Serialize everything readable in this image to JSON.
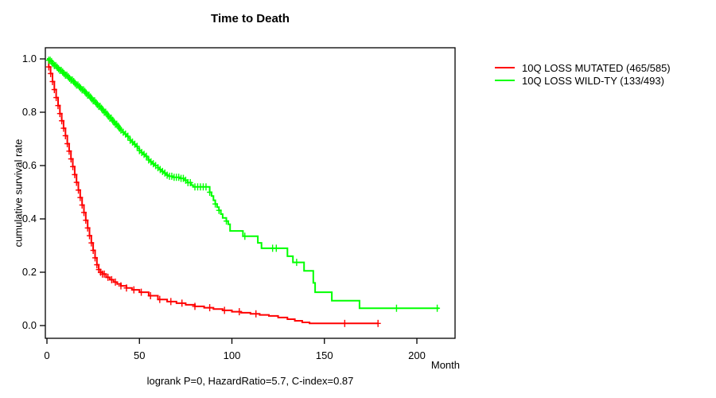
{
  "chart_data": {
    "type": "line",
    "subtype": "kaplan-meier-step-curves",
    "title": "Time to Death",
    "xlabel": "Month",
    "ylabel": "cumulative survival rate",
    "footnote": "logrank P=0, HazardRatio=5.7, C-index=0.87",
    "xlim": [
      0,
      220
    ],
    "ylim": [
      0,
      1
    ],
    "x_ticks": [
      0,
      50,
      100,
      150,
      200
    ],
    "y_ticks": [
      "0.0",
      "0.2",
      "0.4",
      "0.6",
      "0.8",
      "1.0"
    ],
    "grid": false,
    "legend_position": "top-right-outside",
    "axis_color": "#000000",
    "background_color": "#ffffff",
    "series": [
      {
        "name": "10Q LOSS MUTATED (465/585)",
        "color": "#ff0000",
        "points": [
          [
            0,
            1.0
          ],
          [
            1,
            0.97
          ],
          [
            2,
            0.945
          ],
          [
            3,
            0.915
          ],
          [
            4,
            0.885
          ],
          [
            5,
            0.855
          ],
          [
            6,
            0.825
          ],
          [
            7,
            0.795
          ],
          [
            8,
            0.768
          ],
          [
            9,
            0.74
          ],
          [
            10,
            0.712
          ],
          [
            11,
            0.682
          ],
          [
            12,
            0.654
          ],
          [
            13,
            0.625
          ],
          [
            14,
            0.596
          ],
          [
            15,
            0.566
          ],
          [
            16,
            0.537
          ],
          [
            17,
            0.508
          ],
          [
            18,
            0.48
          ],
          [
            19,
            0.452
          ],
          [
            20,
            0.424
          ],
          [
            21,
            0.395
          ],
          [
            22,
            0.366
          ],
          [
            23,
            0.337
          ],
          [
            24,
            0.31
          ],
          [
            25,
            0.282
          ],
          [
            26,
            0.254
          ],
          [
            27,
            0.228
          ],
          [
            28,
            0.21
          ],
          [
            29,
            0.2
          ],
          [
            30,
            0.193
          ],
          [
            32,
            0.181
          ],
          [
            34,
            0.172
          ],
          [
            36,
            0.163
          ],
          [
            38,
            0.156
          ],
          [
            40,
            0.149
          ],
          [
            43,
            0.141
          ],
          [
            46,
            0.134
          ],
          [
            50,
            0.125
          ],
          [
            55,
            0.112
          ],
          [
            60,
            0.098
          ],
          [
            65,
            0.09
          ],
          [
            70,
            0.084
          ],
          [
            75,
            0.078
          ],
          [
            80,
            0.072
          ],
          [
            85,
            0.067
          ],
          [
            90,
            0.062
          ],
          [
            95,
            0.057
          ],
          [
            100,
            0.052
          ],
          [
            105,
            0.048
          ],
          [
            110,
            0.044
          ],
          [
            115,
            0.04
          ],
          [
            120,
            0.036
          ],
          [
            125,
            0.03
          ],
          [
            130,
            0.024
          ],
          [
            134,
            0.018
          ],
          [
            138,
            0.012
          ],
          [
            142,
            0.008
          ],
          [
            179,
            0.008
          ]
        ],
        "censor_marks": [
          1,
          2,
          3,
          4,
          5,
          6,
          7,
          8,
          9,
          10,
          11,
          12,
          13,
          14,
          15,
          16,
          17,
          18,
          19,
          20,
          21,
          22,
          23,
          24,
          25,
          26,
          27,
          28,
          29,
          30,
          31,
          33,
          35,
          37,
          40,
          43,
          47,
          51,
          56,
          61,
          67,
          73,
          80,
          88,
          96,
          104,
          113,
          161,
          179
        ]
      },
      {
        "name": "10Q LOSS WILD-TY (133/493)",
        "color": "#00ff00",
        "points": [
          [
            0,
            1.0
          ],
          [
            1,
            0.995
          ],
          [
            2,
            0.99
          ],
          [
            3,
            0.982
          ],
          [
            4,
            0.975
          ],
          [
            5,
            0.969
          ],
          [
            6,
            0.963
          ],
          [
            7,
            0.957
          ],
          [
            8,
            0.951
          ],
          [
            9,
            0.945
          ],
          [
            10,
            0.939
          ],
          [
            11,
            0.933
          ],
          [
            12,
            0.927
          ],
          [
            13,
            0.921
          ],
          [
            14,
            0.915
          ],
          [
            15,
            0.908
          ],
          [
            16,
            0.902
          ],
          [
            17,
            0.896
          ],
          [
            18,
            0.89
          ],
          [
            19,
            0.884
          ],
          [
            20,
            0.878
          ],
          [
            21,
            0.871
          ],
          [
            22,
            0.864
          ],
          [
            23,
            0.857
          ],
          [
            24,
            0.85
          ],
          [
            25,
            0.843
          ],
          [
            26,
            0.836
          ],
          [
            27,
            0.829
          ],
          [
            28,
            0.822
          ],
          [
            29,
            0.815
          ],
          [
            30,
            0.808
          ],
          [
            31,
            0.8
          ],
          [
            32,
            0.793
          ],
          [
            33,
            0.785
          ],
          [
            34,
            0.778
          ],
          [
            35,
            0.77
          ],
          [
            36,
            0.763
          ],
          [
            37,
            0.755
          ],
          [
            38,
            0.748
          ],
          [
            39,
            0.74
          ],
          [
            40,
            0.733
          ],
          [
            41,
            0.725
          ],
          [
            42,
            0.718
          ],
          [
            43,
            0.71
          ],
          [
            44,
            0.703
          ],
          [
            45,
            0.695
          ],
          [
            46,
            0.688
          ],
          [
            47,
            0.68
          ],
          [
            48,
            0.672
          ],
          [
            49,
            0.664
          ],
          [
            50,
            0.656
          ],
          [
            51,
            0.649
          ],
          [
            52,
            0.642
          ],
          [
            53,
            0.635
          ],
          [
            54,
            0.628
          ],
          [
            55,
            0.621
          ],
          [
            56,
            0.614
          ],
          [
            57,
            0.607
          ],
          [
            58,
            0.6
          ],
          [
            60,
            0.592
          ],
          [
            61,
            0.585
          ],
          [
            62,
            0.578
          ],
          [
            63,
            0.572
          ],
          [
            64,
            0.568
          ],
          [
            65,
            0.564
          ],
          [
            66,
            0.56
          ],
          [
            68,
            0.556
          ],
          [
            72,
            0.552
          ],
          [
            74,
            0.545
          ],
          [
            76,
            0.536
          ],
          [
            78,
            0.527
          ],
          [
            79,
            0.52
          ],
          [
            88,
            0.5
          ],
          [
            89,
            0.486
          ],
          [
            90,
            0.47
          ],
          [
            91,
            0.456
          ],
          [
            92,
            0.444
          ],
          [
            93,
            0.432
          ],
          [
            94,
            0.418
          ],
          [
            95,
            0.404
          ],
          [
            97,
            0.392
          ],
          [
            98,
            0.38
          ],
          [
            99,
            0.355
          ],
          [
            106,
            0.335
          ],
          [
            114,
            0.31
          ],
          [
            116,
            0.29
          ],
          [
            130,
            0.26
          ],
          [
            133,
            0.237
          ],
          [
            139,
            0.205
          ],
          [
            144,
            0.16
          ],
          [
            145,
            0.125
          ],
          [
            154,
            0.093
          ],
          [
            169,
            0.065
          ],
          [
            212,
            0.065
          ]
        ],
        "censor_marks": [
          1,
          1.75,
          2.5,
          3.25,
          4,
          4.75,
          5.5,
          6.25,
          7,
          7.75,
          8.5,
          9.25,
          10,
          10.75,
          11.5,
          12.25,
          13,
          13.75,
          14.5,
          15.25,
          16,
          16.75,
          17.5,
          18.25,
          19,
          19.75,
          20.5,
          21.25,
          22,
          22.75,
          23.5,
          24.25,
          25,
          25.75,
          26.5,
          27.25,
          28,
          28.75,
          29.5,
          30.25,
          31,
          31.75,
          32.5,
          33.25,
          34,
          34.75,
          35.5,
          36.25,
          37,
          37.75,
          38.5,
          39.25,
          40,
          41.25,
          42.5,
          43.75,
          45,
          46.25,
          47.5,
          48.75,
          50,
          51.25,
          52.5,
          53.75,
          55,
          56.25,
          57.5,
          58.75,
          60,
          61.25,
          62.5,
          63.75,
          65,
          66.25,
          67.5,
          68.75,
          70,
          71.25,
          72.5,
          73.75,
          75,
          76.25,
          77.5,
          80,
          81.5,
          83,
          84.5,
          86,
          88,
          91,
          93,
          97,
          107,
          122,
          124,
          135,
          189,
          211
        ]
      }
    ]
  }
}
